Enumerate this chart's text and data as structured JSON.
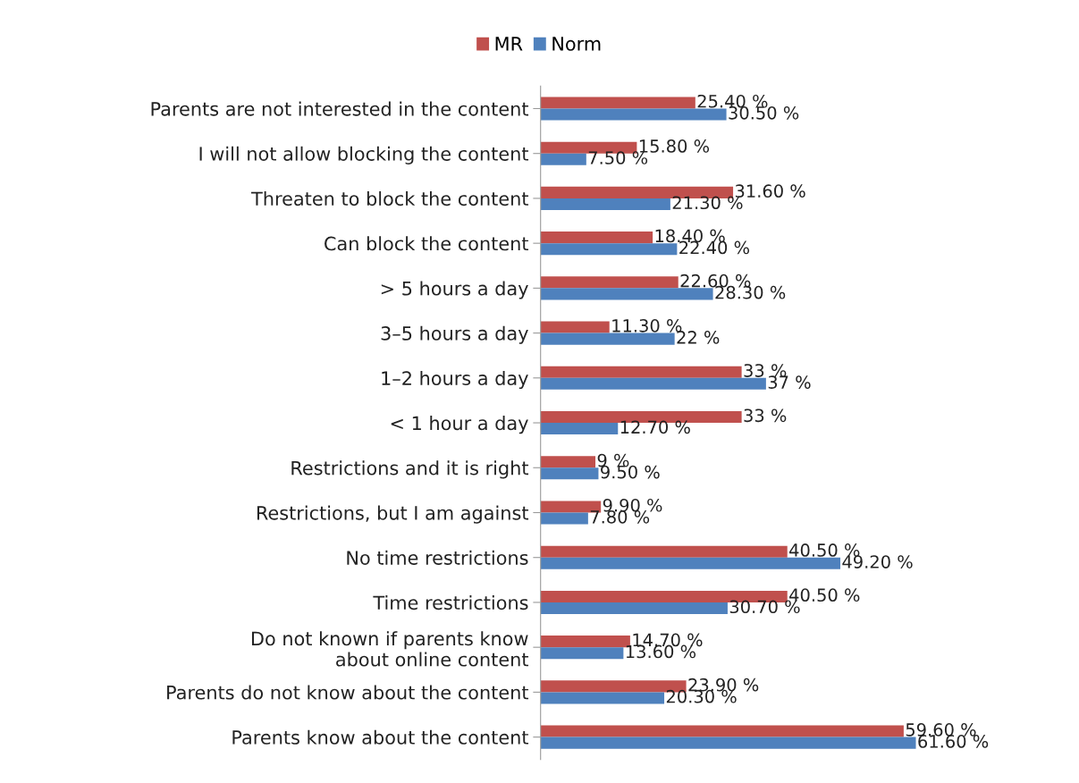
{
  "chart_data": {
    "type": "bar",
    "orientation": "horizontal",
    "legend": "top",
    "grid": false,
    "categories": [
      "Parents are not interested in the content",
      "I will not allow blocking the content",
      "Threaten to block the content",
      "Can block the content",
      "> 5 hours a day",
      "3–5 hours a day",
      "1–2 hours a day",
      "< 1 hour a day",
      "Restrictions and it is right",
      "Restrictions, but I am against",
      "No time restrictions",
      "Time restrictions",
      "Do not known if parents know\nabout online content",
      "Parents do not know about the content",
      "Parents know about the content"
    ],
    "series": [
      {
        "name": "MR",
        "color": "#c0504d",
        "values": [
          25.4,
          15.8,
          31.6,
          18.4,
          22.6,
          11.3,
          33,
          33,
          9,
          9.9,
          40.5,
          40.5,
          14.7,
          23.9,
          59.6
        ],
        "value_labels": [
          "25.40 %",
          "15.80 %",
          "31.60 %",
          "18.40 %",
          "22.60 %",
          "11.30 %",
          "33 %",
          "33 %",
          "9 %",
          "9.90 %",
          "40.50 %",
          "40.50 %",
          "14.70 %",
          "23.90 %",
          "59.60 %"
        ]
      },
      {
        "name": "Norm",
        "color": "#4f81bd",
        "values": [
          30.5,
          7.5,
          21.3,
          22.4,
          28.3,
          22,
          37,
          12.7,
          9.5,
          7.8,
          49.2,
          30.7,
          13.6,
          20.3,
          61.6
        ],
        "value_labels": [
          "30.50 %",
          "7.50 %",
          "21.30 %",
          "22.40 %",
          "28.30 %",
          "22 %",
          "37 %",
          "12.70 %",
          "9.50 %",
          "7.80 %",
          "49.20 %",
          "30.70 %",
          "13.60 %",
          "20.30 %",
          "61.60 %"
        ]
      }
    ]
  }
}
